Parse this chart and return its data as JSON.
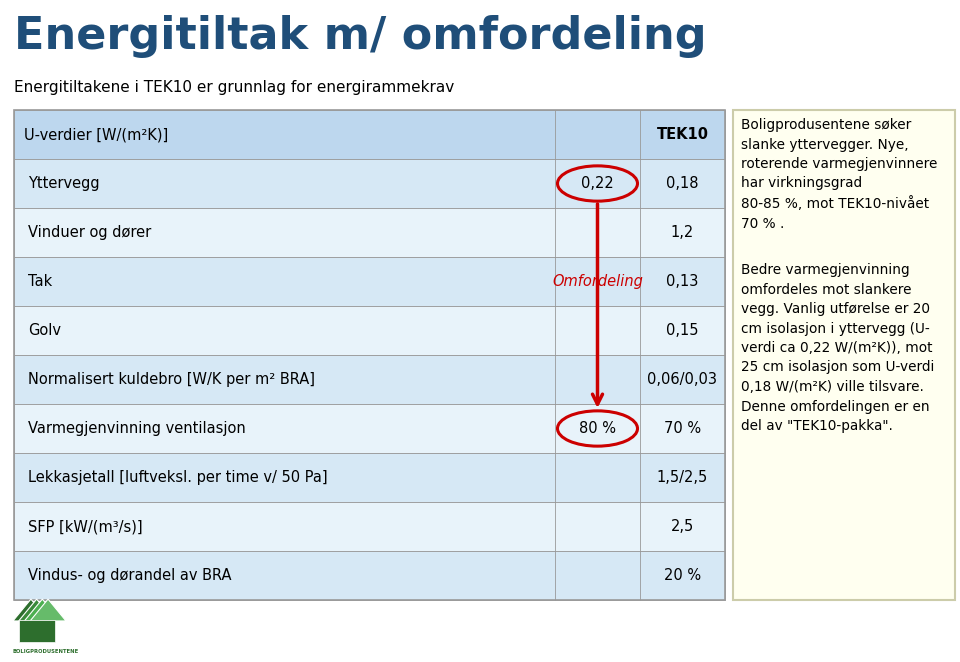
{
  "title": "Energitiltak m/ omfordeling",
  "subtitle": "Energitiltakene i TEK10 er grunnlag for energirammekrav",
  "title_color": "#1F4E79",
  "subtitle_color": "#000000",
  "table_header_label": "U-verdier [W/(m²K)]",
  "table_header_tek10": "TEK10",
  "table_rows": [
    {
      "label": "Yttervegg",
      "mid": "0,22",
      "tek10": "0,18"
    },
    {
      "label": "Vinduer og dører",
      "mid": "",
      "tek10": "1,2"
    },
    {
      "label": "Tak",
      "mid": "Omfordeling",
      "tek10": "0,13"
    },
    {
      "label": "Golv",
      "mid": "",
      "tek10": "0,15"
    },
    {
      "label": "Normalisert kuldebro [W/K per m² BRA]",
      "mid": "",
      "tek10": "0,06/0,03"
    },
    {
      "label": "Varmegjenvinning ventilasjon",
      "mid": "80 %",
      "tek10": "70 %"
    },
    {
      "label": "Lekkasjetall [luftveksl. per time v/ 50 Pa]",
      "mid": "",
      "tek10": "1,5/2,5"
    },
    {
      "label": "SFP [kW/(m³/s)]",
      "mid": "",
      "tek10": "2,5"
    },
    {
      "label": "Vindus- og dørandel av BRA",
      "mid": "",
      "tek10": "20 %"
    }
  ],
  "right_box_text1": "Boligprodusentene søker\nslanke yttervegger. Nye,\nroterende varmegjenvinnere\nhar virkningsgrad\n80-85 %, mot TEK10-nivået\n70 % .",
  "right_box_text2": "Bedre varmegjenvinning\nomfordeles mot slankere\nvegg. Vanlig utførelse er 20\ncm isolasjon i yttervegg (U-\nverdi ca 0,22 W/(m²K)), mot\n25 cm isolasjon som U-verdi\n0,18 W/(m²K) ville tilsvare.\nDenne omfordelingen er en\ndel av \"TEK10-pakka\".",
  "right_box_bg": "#FFFFF0",
  "right_box_border": "#CCCCAA",
  "table_header_bg": "#BDD7EE",
  "row_colors": [
    "#D6E8F5",
    "#E8F3FA",
    "#D6E8F5",
    "#E8F3FA",
    "#D6E8F5",
    "#E8F3FA",
    "#D6E8F5",
    "#E8F3FA",
    "#D6E8F5"
  ],
  "arrow_color": "#CC0000",
  "omfordeling_color": "#CC0000",
  "circle_color": "#CC0000",
  "bg_color": "#FFFFFF",
  "table_border_color": "#999999",
  "logo_colors": [
    "#2D6E2D",
    "#3A8A3A",
    "#4CAF50",
    "#66BB6A"
  ]
}
